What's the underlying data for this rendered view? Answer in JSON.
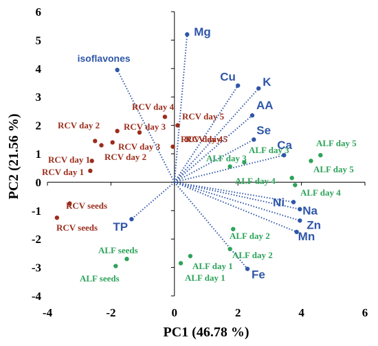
{
  "chart_data": {
    "type": "scatter",
    "subtype": "pca-biplot",
    "xlabel": "PC1 (46.78 %)",
    "ylabel": "PC2 (21.56 %)",
    "xlim": [
      -4,
      6
    ],
    "ylim": [
      -4,
      6
    ],
    "xticks": [
      -4,
      -2,
      0,
      2,
      4,
      6
    ],
    "yticks": [
      -4,
      -3,
      -2,
      -1,
      0,
      1,
      2,
      3,
      4,
      5,
      6
    ],
    "grid": false,
    "colors": {
      "rcv": "#9b2d1c",
      "alf": "#2ea35a",
      "loading": "#2f56a8"
    },
    "loadings": [
      {
        "name": "Mg",
        "x": 0.4,
        "y": 5.2
      },
      {
        "name": "isoflavones",
        "x": -1.8,
        "y": 3.95
      },
      {
        "name": "Cu",
        "x": 2.0,
        "y": 3.4
      },
      {
        "name": "K",
        "x": 2.65,
        "y": 3.3
      },
      {
        "name": "AA",
        "x": 2.45,
        "y": 2.35
      },
      {
        "name": "Se",
        "x": 2.5,
        "y": 1.5
      },
      {
        "name": "Ca",
        "x": 3.45,
        "y": 0.95
      },
      {
        "name": "Ni",
        "x": 3.75,
        "y": -0.7
      },
      {
        "name": "Na",
        "x": 3.95,
        "y": -0.95
      },
      {
        "name": "Zn",
        "x": 3.95,
        "y": -1.35
      },
      {
        "name": "Mn",
        "x": 3.85,
        "y": -1.75
      },
      {
        "name": "Fe",
        "x": 2.3,
        "y": -3.05
      },
      {
        "name": "TP",
        "x": -1.35,
        "y": -1.3
      }
    ],
    "series": [
      {
        "name": "RCV",
        "points": [
          {
            "label": "RCV day 4",
            "x": -0.3,
            "y": 2.3
          },
          {
            "label": "RCV day 5",
            "x": 0.1,
            "y": 2.0
          },
          {
            "label": "RCV day 4",
            "x": -1.1,
            "y": 1.75
          },
          {
            "label": "RCV day 5",
            "x": -0.05,
            "y": 1.25
          },
          {
            "label": "RCV day 3",
            "x": -1.8,
            "y": 1.8
          },
          {
            "label": "RCV day 3",
            "x": -1.95,
            "y": 1.4
          },
          {
            "label": "RCV day 2",
            "x": -2.5,
            "y": 1.45
          },
          {
            "label": "RCV day 2",
            "x": -2.3,
            "y": 1.3
          },
          {
            "label": "RCV day 1",
            "x": -2.6,
            "y": 0.75
          },
          {
            "label": "RCV day 1",
            "x": -2.65,
            "y": 0.4
          },
          {
            "label": "RCV seeds",
            "x": -3.3,
            "y": -0.75
          },
          {
            "label": "RCV seeds",
            "x": -3.7,
            "y": -1.25
          }
        ]
      },
      {
        "name": "ALF",
        "points": [
          {
            "label": "ALF day 5",
            "x": 4.6,
            "y": 0.95
          },
          {
            "label": "ALF day 5",
            "x": 4.3,
            "y": 0.75
          },
          {
            "label": "ALF day 3",
            "x": 2.2,
            "y": 0.7
          },
          {
            "label": "ALF day 3",
            "x": 1.75,
            "y": 0.55
          },
          {
            "label": "ALF day 4",
            "x": 3.7,
            "y": 0.15
          },
          {
            "label": "ALF day 4",
            "x": 3.8,
            "y": -0.1
          },
          {
            "label": "ALF day 2",
            "x": 1.85,
            "y": -1.65
          },
          {
            "label": "ALF day 2",
            "x": 1.75,
            "y": -2.35
          },
          {
            "label": "ALF day 1",
            "x": 0.5,
            "y": -2.6
          },
          {
            "label": "ALF day 1",
            "x": 0.2,
            "y": -2.85
          },
          {
            "label": "ALF seeds",
            "x": -1.5,
            "y": -2.7
          },
          {
            "label": "ALF seeds",
            "x": -1.85,
            "y": -2.95
          }
        ]
      }
    ],
    "annotations": [
      {
        "text": "RCV day 4"
      },
      {
        "text": "RCV day 5"
      },
      {
        "text": "RCV day 3"
      },
      {
        "text": "RCV day 4"
      },
      {
        "text": "RCV day 2"
      },
      {
        "text": "RCV day 3"
      },
      {
        "text": "RCV day 5"
      },
      {
        "text": "RCV day 1"
      },
      {
        "text": "RCV day 2"
      },
      {
        "text": "RCV day 1"
      },
      {
        "text": "RCV seeds"
      },
      {
        "text": "RCV seeds"
      },
      {
        "text": "ALF day 5"
      },
      {
        "text": "ALF day 3"
      },
      {
        "text": "ALF day 3"
      },
      {
        "text": "ALF day 5"
      },
      {
        "text": "ALF day 4"
      },
      {
        "text": "ALF day 4"
      },
      {
        "text": "ALF day 2"
      },
      {
        "text": "ALF day 2"
      },
      {
        "text": "ALF day 1"
      },
      {
        "text": "ALF day 1"
      },
      {
        "text": "ALF seeds"
      },
      {
        "text": "ALF seeds"
      }
    ]
  }
}
